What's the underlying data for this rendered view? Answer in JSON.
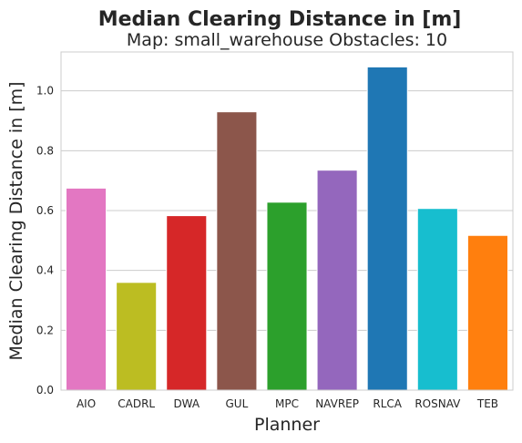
{
  "chart_data": {
    "type": "bar",
    "title": "Median Clearing Distance in [m]",
    "subtitle": "Map: small_warehouse Obstacles: 10",
    "xlabel": "Planner",
    "ylabel": "Median Clearing Distance in [m]",
    "ylim": [
      0,
      1.13
    ],
    "yticks": [
      0.0,
      0.2,
      0.4,
      0.6,
      0.8,
      1.0
    ],
    "ytick_labels": [
      "0.0",
      "0.2",
      "0.4",
      "0.6",
      "0.8",
      "1.0"
    ],
    "grid": true,
    "categories": [
      "AIO",
      "CADRL",
      "DWA",
      "GUL",
      "MPC",
      "NAVREP",
      "RLCA",
      "ROSNAV",
      "TEB"
    ],
    "values": [
      0.675,
      0.36,
      0.583,
      0.93,
      0.628,
      0.735,
      1.08,
      0.607,
      0.517
    ],
    "colors": [
      "#e377c2",
      "#bcbd22",
      "#d62728",
      "#8c564b",
      "#2ca02c",
      "#9467bd",
      "#1f77b4",
      "#17becf",
      "#ff7f0e"
    ]
  }
}
